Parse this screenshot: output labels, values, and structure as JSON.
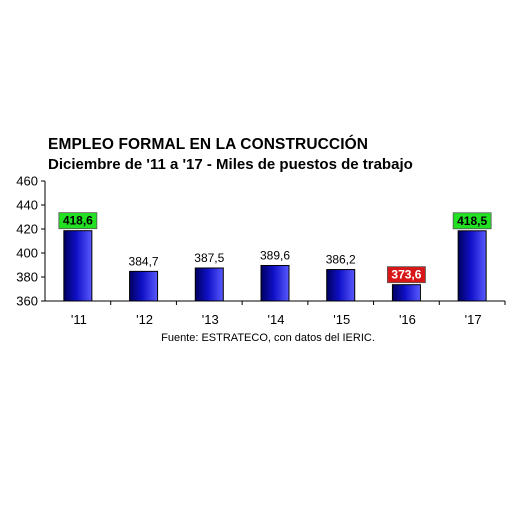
{
  "chart_data": {
    "type": "bar",
    "title": "EMPLEO FORMAL EN LA CONSTRUCCIÓN",
    "subtitle": "Diciembre de '11 a '17 - Miles de puestos de trabajo",
    "source": "Fuente: ESTRATECO, con datos del IERIC.",
    "categories": [
      "'11",
      "'12",
      "'13",
      "'14",
      "'15",
      "'16",
      "'17"
    ],
    "values": [
      418.6,
      384.7,
      387.5,
      389.6,
      386.2,
      373.6,
      418.5
    ],
    "value_labels": [
      "418,6",
      "384,7",
      "387,5",
      "389,6",
      "386,2",
      "373,6",
      "418,5"
    ],
    "highlights": [
      "max",
      null,
      null,
      null,
      null,
      "min",
      "max"
    ],
    "ylim": [
      360,
      460
    ],
    "yticks": [
      360,
      380,
      400,
      420,
      440,
      460
    ],
    "grid": false,
    "legend": "none",
    "colors": {
      "bar": "#1010c8",
      "bar_dark": "#000060",
      "bar_light": "#5a5aff",
      "highlight_max": "#22e022",
      "highlight_min": "#d81818"
    }
  }
}
